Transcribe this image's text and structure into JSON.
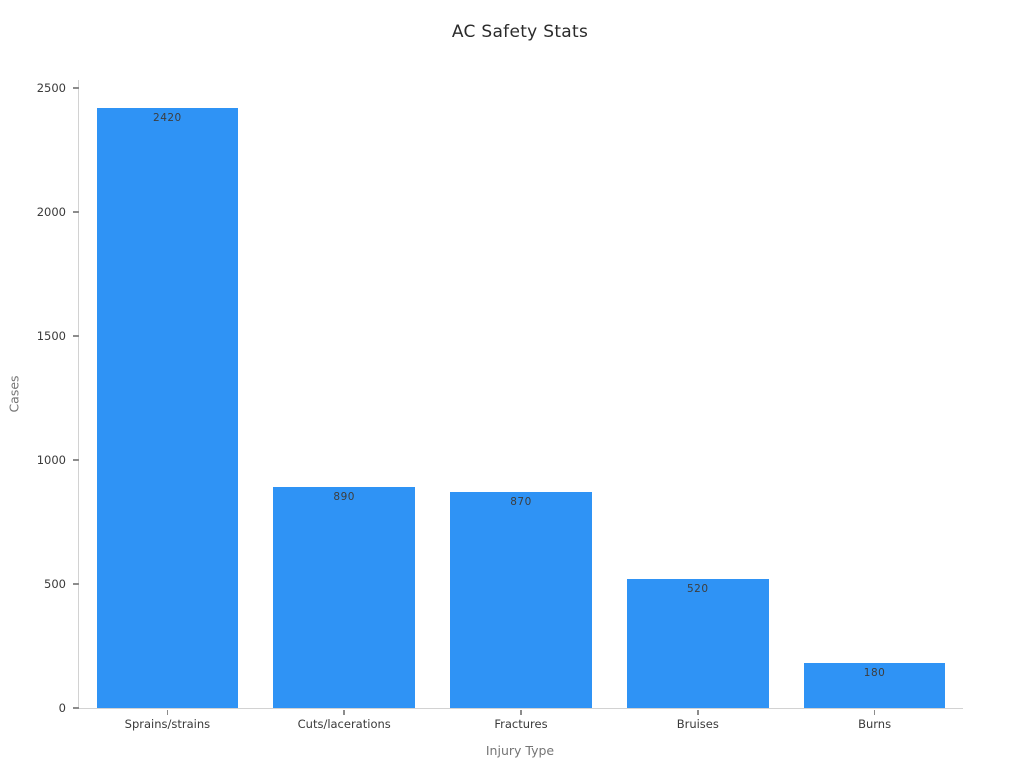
{
  "chart_data": {
    "type": "bar",
    "title": "AC Safety Stats",
    "xlabel": "Injury Type",
    "ylabel": "Cases",
    "categories": [
      "Sprains/strains",
      "Cuts/lacerations",
      "Fractures",
      "Bruises",
      "Burns"
    ],
    "values": [
      2420,
      890,
      870,
      520,
      180
    ],
    "yticks": [
      0,
      500,
      1000,
      1500,
      2000,
      2500
    ],
    "ylim": [
      0,
      2532
    ],
    "grid": false,
    "legend": "none",
    "colors": {
      "bar": "#2F93F5",
      "spine": "#d2d2d2",
      "tick_mark": "#8c8c8c",
      "tick_label": "#3a3a3a",
      "value_label": "#3d3d3d",
      "axis_title": "#757575",
      "title": "#2b2b2b",
      "background": "#ffffff"
    }
  }
}
